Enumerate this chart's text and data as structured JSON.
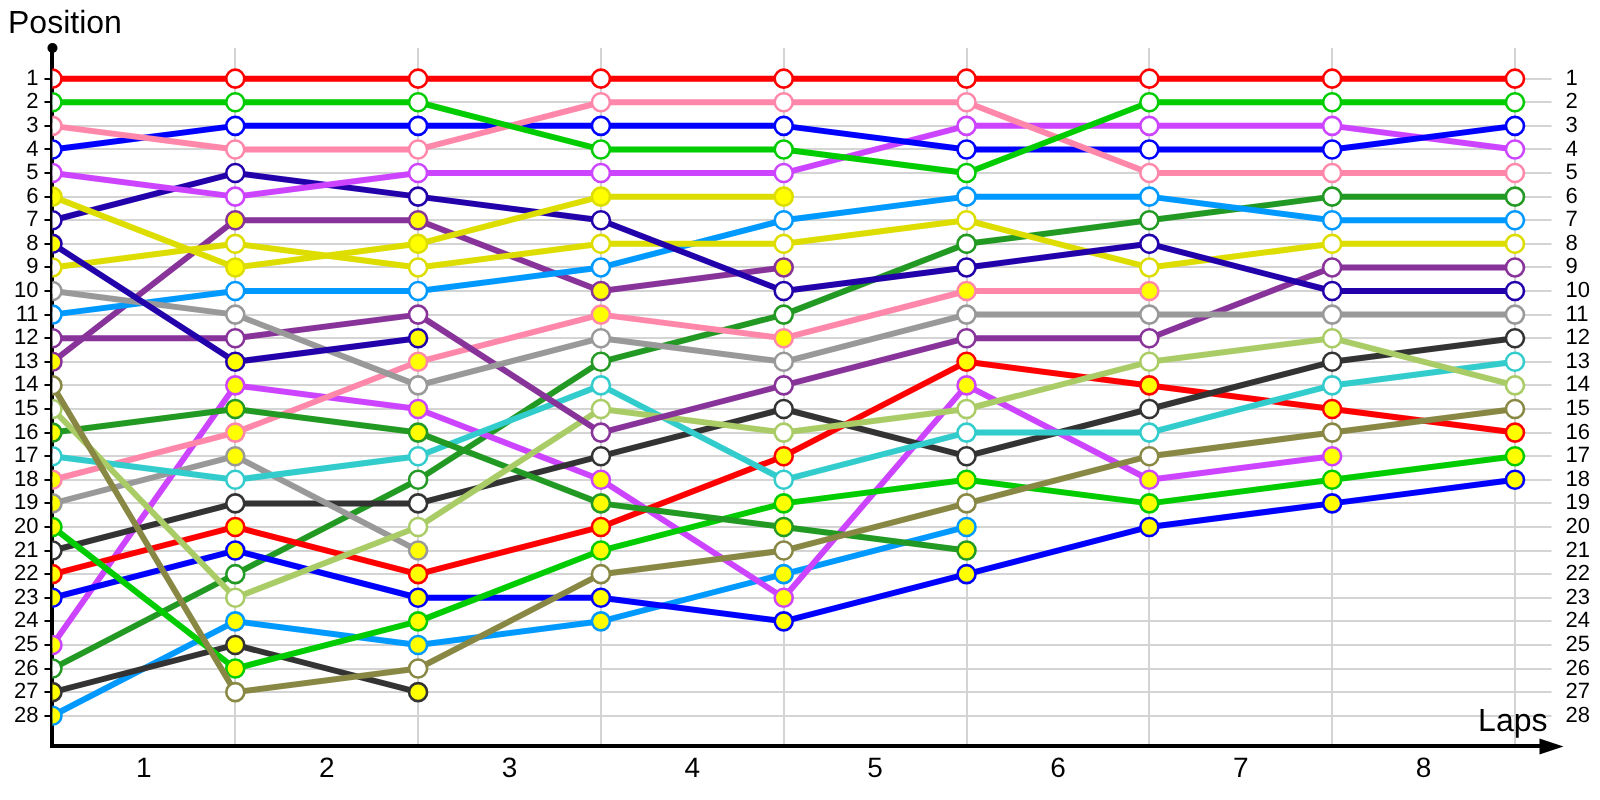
{
  "chart_data": {
    "type": "line",
    "xlabel": "Laps",
    "ylabel": "Position",
    "x": [
      0,
      1,
      2,
      3,
      4,
      5,
      6,
      7,
      8
    ],
    "xlim": [
      0,
      8.2
    ],
    "xticks": [
      {
        "value": 0,
        "label": null
      },
      {
        "value": 0.5,
        "label": "1"
      },
      {
        "value": 1,
        "label": null
      },
      {
        "value": 1.5,
        "label": "2"
      },
      {
        "value": 2,
        "label": null
      },
      {
        "value": 2.5,
        "label": "3"
      },
      {
        "value": 3,
        "label": null
      },
      {
        "value": 3.5,
        "label": "4"
      },
      {
        "value": 4,
        "label": null
      },
      {
        "value": 4.5,
        "label": "5"
      },
      {
        "value": 5,
        "label": null
      },
      {
        "value": 5.5,
        "label": "6"
      },
      {
        "value": 6,
        "label": null
      },
      {
        "value": 6.5,
        "label": "7"
      },
      {
        "value": 7,
        "label": null
      },
      {
        "value": 7.5,
        "label": "8"
      },
      {
        "value": 8,
        "label": null
      }
    ],
    "ylim": [
      29.3,
      -0.3
    ],
    "yticks": [
      1,
      2,
      3,
      4,
      5,
      6,
      7,
      8,
      9,
      10,
      11,
      12,
      13,
      14,
      15,
      16,
      17,
      18,
      19,
      20,
      21,
      22,
      23,
      24,
      25,
      26,
      27,
      28
    ],
    "y2lim": [
      29.3,
      -0.3
    ],
    "y2ticks": [
      1,
      2,
      3,
      4,
      5,
      6,
      7,
      8,
      9,
      10,
      11,
      12,
      13,
      14,
      15,
      16,
      17,
      18,
      19,
      20,
      21,
      22,
      23,
      24,
      25,
      26,
      27,
      28
    ],
    "grid": true,
    "legend": false,
    "marker": "circle",
    "line_style": "solid",
    "series": [
      {
        "color": "#ff0000",
        "values": [
          1,
          1,
          1,
          1,
          1,
          1,
          1,
          1,
          1
        ],
        "colors": [
          "#ffffff",
          "#ffffff",
          "#ffffff",
          "#ffffff",
          "#ffffff",
          "#ffffff",
          "#ffffff",
          "#ffffff",
          "#ffffff"
        ]
      },
      {
        "color": "#00cc00",
        "values": [
          2,
          2,
          2,
          4,
          4,
          5,
          2,
          2,
          2
        ],
        "colors": [
          "#ffffff",
          "#ffffff",
          "#ffffff",
          "#ffffff",
          "#ffffff",
          "#ffffff",
          "#ffffff",
          "#ffffff",
          "#ffffff"
        ]
      },
      {
        "color": "#ff88aa",
        "values": [
          3,
          4,
          4,
          2,
          2,
          2,
          5,
          5,
          5
        ],
        "colors": [
          "#ffffff",
          "#ffffff",
          "#ffffff",
          "#ffffff",
          "#ffffff",
          "#ffffff",
          "#ffffff",
          "#ffffff",
          "#ffffff"
        ]
      },
      {
        "color": "#0000ff",
        "values": [
          4,
          3,
          3,
          3,
          3,
          4,
          4,
          4,
          3
        ],
        "colors": [
          "#ffffff",
          "#ffffff",
          "#ffffff",
          "#ffffff",
          "#ffffff",
          "#ffffff",
          "#ffffff",
          "#ffffff",
          "#ffffff"
        ]
      },
      {
        "color": "#cc44ff",
        "values": [
          5,
          6,
          5,
          5,
          5,
          3,
          3,
          3,
          4
        ],
        "colors": [
          "#ffffff",
          "#ffffff",
          "#ffffff",
          "#ffffff",
          "#ffffff",
          "#ffffff",
          "#ffffff",
          "#ffffff",
          "#ffffff"
        ]
      },
      {
        "color": "#dddd00",
        "values": [
          6,
          9,
          8,
          6,
          6,
          null,
          null,
          null,
          null
        ],
        "colors": [
          "#ffff00",
          "#ffff00",
          "#ffff00",
          "#ffff00",
          "#ffff00",
          null,
          null,
          null,
          null
        ]
      },
      {
        "color": "#2200aa",
        "values": [
          7,
          5,
          6,
          7,
          10,
          9,
          8,
          10,
          10
        ],
        "colors": [
          "#ffffff",
          "#ffffff",
          "#ffffff",
          "#ffffff",
          "#ffffff",
          "#ffffff",
          "#ffffff",
          "#ffffff",
          "#ffffff"
        ]
      },
      {
        "color": "#2200aa",
        "values": [
          8,
          13,
          12,
          null,
          null,
          null,
          null,
          null,
          null
        ],
        "colors": [
          "#ffff00",
          "#ffff00",
          "#ffff00",
          null,
          null,
          null,
          null,
          null,
          null
        ]
      },
      {
        "color": "#dddd00",
        "values": [
          9,
          8,
          9,
          8,
          8,
          7,
          9,
          8,
          8
        ],
        "colors": [
          "#ffffff",
          "#ffffff",
          "#ffffff",
          "#ffffff",
          "#ffffff",
          "#ffffff",
          "#ffffff",
          "#ffffff",
          "#ffffff"
        ]
      },
      {
        "color": "#999999",
        "values": [
          10,
          11,
          14,
          12,
          13,
          11,
          11,
          11,
          11
        ],
        "colors": [
          "#ffffff",
          "#ffffff",
          "#ffffff",
          "#ffffff",
          "#ffffff",
          "#ffffff",
          "#ffffff",
          "#ffffff",
          "#ffffff"
        ]
      },
      {
        "color": "#0099ff",
        "values": [
          11,
          10,
          10,
          9,
          7,
          6,
          6,
          7,
          7
        ],
        "colors": [
          "#ffffff",
          "#ffffff",
          "#ffffff",
          "#ffffff",
          "#ffffff",
          "#ffffff",
          "#ffffff",
          "#ffffff",
          "#ffffff"
        ]
      },
      {
        "color": "#883399",
        "values": [
          12,
          12,
          11,
          16,
          14,
          12,
          12,
          9,
          9
        ],
        "colors": [
          "#ffffff",
          "#ffffff",
          "#ffffff",
          "#ffffff",
          "#ffffff",
          "#ffffff",
          "#ffffff",
          "#ffffff",
          "#ffffff"
        ]
      },
      {
        "color": "#883399",
        "values": [
          13,
          7,
          7,
          10,
          9,
          null,
          null,
          null,
          null
        ],
        "colors": [
          "#ffff00",
          "#ffff00",
          "#ffff00",
          "#ffff00",
          "#ffff00",
          null,
          null,
          null,
          null
        ]
      },
      {
        "color": "#888844",
        "values": [
          14,
          27,
          26,
          22,
          21,
          19,
          17,
          16,
          15
        ],
        "colors": [
          "#ffffff",
          "#ffffff",
          "#ffffff",
          "#ffffff",
          "#ffffff",
          "#ffffff",
          "#ffffff",
          "#ffffff",
          "#ffffff"
        ]
      },
      {
        "color": "#aacc66",
        "values": [
          15,
          23,
          20,
          15,
          16,
          15,
          13,
          12,
          14
        ],
        "colors": [
          "#ffffff",
          "#ffffff",
          "#ffffff",
          "#ffffff",
          "#ffffff",
          "#ffffff",
          "#ffffff",
          "#ffffff",
          "#ffffff"
        ]
      },
      {
        "color": "#229922",
        "values": [
          16,
          15,
          16,
          19,
          20,
          21,
          null,
          null,
          null
        ],
        "colors": [
          "#ffff00",
          "#ffff00",
          "#ffff00",
          "#ffff00",
          "#ffff00",
          "#ffff00",
          null,
          null,
          null
        ]
      },
      {
        "color": "#33cccc",
        "values": [
          17,
          18,
          17,
          14,
          18,
          16,
          16,
          14,
          13
        ],
        "colors": [
          "#ffffff",
          "#ffffff",
          "#ffffff",
          "#ffffff",
          "#ffffff",
          "#ffffff",
          "#ffffff",
          "#ffffff",
          "#ffffff"
        ]
      },
      {
        "color": "#ff88aa",
        "values": [
          18,
          16,
          13,
          11,
          12,
          10,
          10,
          null,
          null
        ],
        "colors": [
          "#ffff00",
          "#ffff00",
          "#ffff00",
          "#ffff00",
          "#ffff00",
          "#ffff00",
          "#ffff00",
          null,
          null
        ]
      },
      {
        "color": "#999999",
        "values": [
          19,
          17,
          21,
          null,
          null,
          null,
          null,
          null,
          null
        ],
        "colors": [
          "#ffff00",
          "#ffff00",
          "#ffff00",
          null,
          null,
          null,
          null,
          null,
          null
        ]
      },
      {
        "color": "#00cc00",
        "values": [
          20,
          26,
          24,
          21,
          19,
          18,
          19,
          18,
          17
        ],
        "colors": [
          "#ffff00",
          "#ffff00",
          "#ffff00",
          "#ffff00",
          "#ffff00",
          "#ffff00",
          "#ffff00",
          "#ffff00",
          "#ffff00"
        ]
      },
      {
        "color": "#333333",
        "values": [
          21,
          19,
          19,
          17,
          15,
          17,
          15,
          13,
          12
        ],
        "colors": [
          "#ffffff",
          "#ffffff",
          "#ffffff",
          "#ffffff",
          "#ffffff",
          "#ffffff",
          "#ffffff",
          "#ffffff",
          "#ffffff"
        ]
      },
      {
        "color": "#ff0000",
        "values": [
          22,
          20,
          22,
          20,
          17,
          13,
          14,
          15,
          16
        ],
        "colors": [
          "#ffff00",
          "#ffff00",
          "#ffff00",
          "#ffff00",
          "#ffff00",
          "#ffff00",
          "#ffff00",
          "#ffff00",
          "#ffff00"
        ]
      },
      {
        "color": "#0000ff",
        "values": [
          23,
          21,
          23,
          23,
          24,
          22,
          20,
          19,
          18
        ],
        "colors": [
          "#ffff00",
          "#ffff00",
          "#ffff00",
          "#ffff00",
          "#ffff00",
          "#ffff00",
          "#ffff00",
          "#ffff00",
          "#ffff00"
        ]
      },
      {
        "color": "#cc44ff",
        "values": [
          25,
          14,
          15,
          18,
          23,
          14,
          18,
          17,
          null
        ],
        "colors": [
          "#ffff00",
          "#ffff00",
          "#ffff00",
          "#ffff00",
          "#ffff00",
          "#ffff00",
          "#ffff00",
          "#ffff00",
          null
        ]
      },
      {
        "color": "#229922",
        "values": [
          26,
          22,
          18,
          13,
          11,
          8,
          7,
          6,
          6
        ],
        "colors": [
          "#ffffff",
          "#ffffff",
          "#ffffff",
          "#ffffff",
          "#ffffff",
          "#ffffff",
          "#ffffff",
          "#ffffff",
          "#ffffff"
        ]
      },
      {
        "color": "#333333",
        "values": [
          27,
          25,
          27,
          null,
          null,
          null,
          null,
          null,
          null
        ],
        "colors": [
          "#ffff00",
          "#ffff00",
          "#ffff00",
          null,
          null,
          null,
          null,
          null,
          null
        ]
      },
      {
        "color": "#0099ff",
        "values": [
          28,
          24,
          25,
          24,
          22,
          20,
          null,
          null,
          null
        ],
        "colors": [
          "#ffff00",
          "#ffff00",
          "#ffff00",
          "#ffff00",
          "#ffff00",
          "#ffff00",
          null,
          null,
          null
        ]
      }
    ]
  }
}
